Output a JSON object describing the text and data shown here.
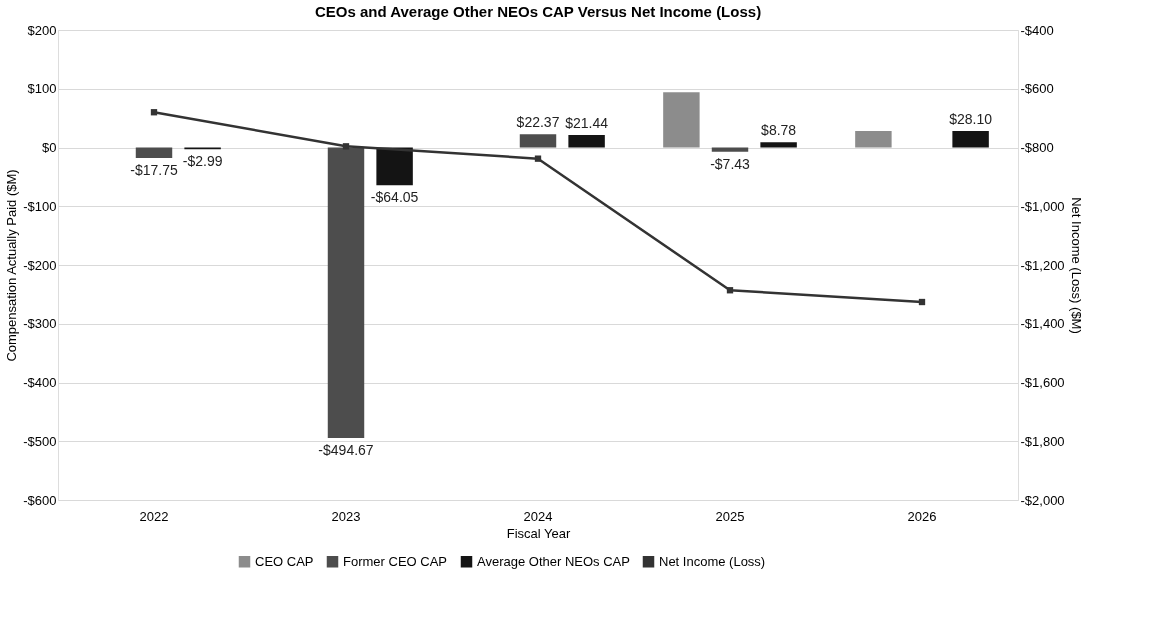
{
  "chart_data": {
    "type": "bar",
    "title": "CEOs and Average Other NEOs CAP Versus Net Income (Loss)",
    "xlabel": "Fiscal Year",
    "ylabel": "Compensation Actually Paid ($M)",
    "y2label": "Net Income (Loss)  ($M)",
    "categories": [
      "2022",
      "2023",
      "2024",
      "2025",
      "2026"
    ],
    "series": [
      {
        "name": "CEO CAP",
        "color": "#8c8c8c",
        "values": [
          null,
          null,
          null,
          94,
          28
        ],
        "value_labels": [
          null,
          null,
          null,
          null,
          null
        ]
      },
      {
        "name": "Former CEO CAP",
        "color": "#4d4d4d",
        "values": [
          -17.75,
          -494.67,
          22.37,
          -7.43,
          null
        ],
        "value_labels": [
          "-$17.75",
          "-$494.67",
          "$22.37",
          "-$7.43",
          null
        ]
      },
      {
        "name": "Average Other NEOs CAP",
        "color": "#141414",
        "values": [
          -2.99,
          -64.05,
          21.44,
          8.78,
          28.1
        ],
        "value_labels": [
          "-$2.99",
          "-$64.05",
          "$21.44",
          "$8.78",
          "$28.10"
        ]
      },
      {
        "name": "Net Income (Loss)",
        "type": "line",
        "axis": "y2",
        "color": "#333333",
        "marker": "square",
        "values": [
          -680,
          -796,
          -838,
          -1286,
          -1326
        ]
      }
    ],
    "ylim": [
      -600,
      200
    ],
    "yticks": [
      {
        "value": -600,
        "label": "-$600"
      },
      {
        "value": -500,
        "label": "-$500"
      },
      {
        "value": -400,
        "label": "-$400"
      },
      {
        "value": -300,
        "label": "-$300"
      },
      {
        "value": -200,
        "label": "-$200"
      },
      {
        "value": -100,
        "label": "-$100"
      },
      {
        "value": 0,
        "label": "$0"
      },
      {
        "value": 100,
        "label": "$100"
      },
      {
        "value": 200,
        "label": "$200"
      }
    ],
    "y2lim": [
      -2000,
      -400
    ],
    "y2ticks": [
      {
        "value": -2000,
        "label": "-$2,000"
      },
      {
        "value": -1800,
        "label": "-$1,800"
      },
      {
        "value": -1600,
        "label": "-$1,600"
      },
      {
        "value": -1400,
        "label": "-$1,400"
      },
      {
        "value": -1200,
        "label": "-$1,200"
      },
      {
        "value": -1000,
        "label": "-$1,000"
      },
      {
        "value": -800,
        "label": "-$800"
      },
      {
        "value": -600,
        "label": "-$600"
      },
      {
        "value": -400,
        "label": "-$400"
      }
    ],
    "grid": "y",
    "legend": "bottom"
  }
}
